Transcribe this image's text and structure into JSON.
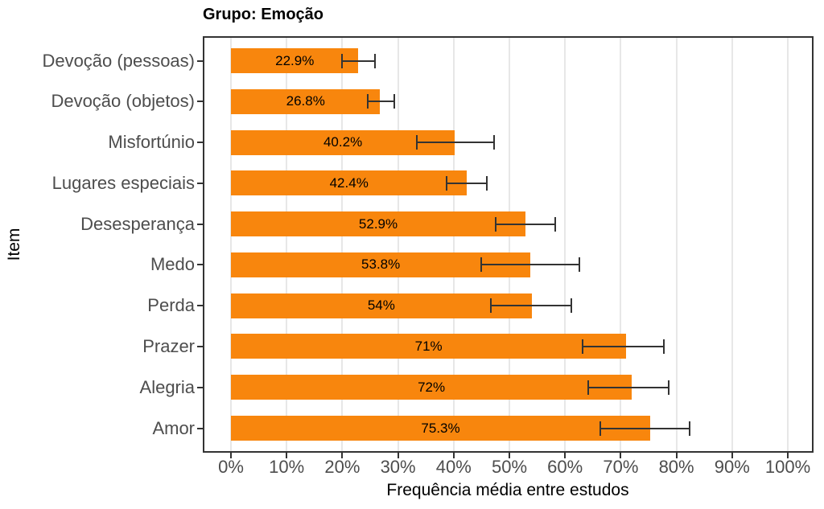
{
  "chart_data": {
    "type": "bar",
    "orientation": "horizontal",
    "title": "Grupo: Emoção",
    "xlabel": "Frequência média entre estudos",
    "ylabel": "Item",
    "xlim": [
      0,
      100
    ],
    "x_ticks_percent": [
      0,
      10,
      20,
      30,
      40,
      50,
      60,
      70,
      80,
      90,
      100
    ],
    "x_tick_labels": [
      "0%",
      "10%",
      "20%",
      "30%",
      "40%",
      "50%",
      "60%",
      "70%",
      "80%",
      "90%",
      "100%"
    ],
    "grid": "vertical major gridlines only",
    "legend": "none",
    "categories": [
      "Devoção (pessoas)",
      "Devoção (objetos)",
      "Misfortúnio",
      "Lugares especiais",
      "Desesperança",
      "Medo",
      "Perda",
      "Prazer",
      "Alegria",
      "Amor"
    ],
    "values": [
      22.9,
      26.8,
      40.2,
      42.4,
      52.9,
      53.8,
      54,
      71,
      72,
      75.3
    ],
    "bar_labels": [
      "22.9%",
      "26.8%",
      "40.2%",
      "42.4%",
      "52.9%",
      "53.8%",
      "54%",
      "71%",
      "72%",
      "75.3%"
    ],
    "error_low": [
      19.9,
      24.6,
      33.4,
      38.8,
      47.5,
      45.0,
      46.7,
      63.2,
      64.2,
      66.4
    ],
    "error_high": [
      25.8,
      29.3,
      47.2,
      45.9,
      58.3,
      62.5,
      61.1,
      77.8,
      78.6,
      82.3
    ],
    "colors": {
      "bar": "#F8860D",
      "error_bar": "#333333",
      "gridline": "#E7E7E7",
      "panel_border": "#333333",
      "axis_text": "#4D4D4D",
      "title_text": "#000000",
      "bar_label_text": "#000000"
    }
  }
}
